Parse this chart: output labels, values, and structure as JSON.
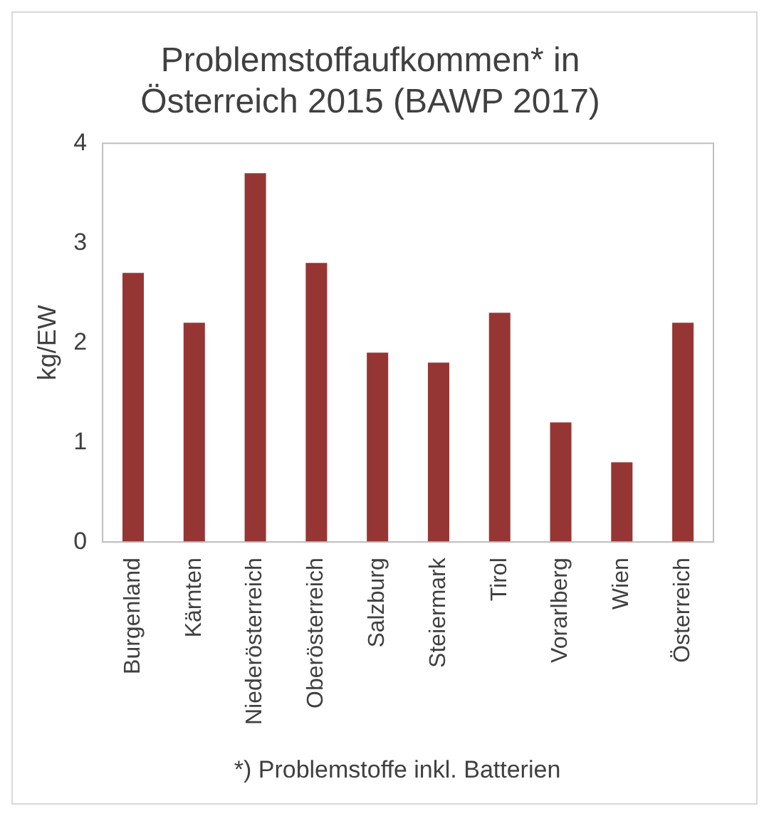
{
  "chart_data": {
    "type": "bar",
    "title": [
      "Problemstoffaufkommen* in",
      "Österreich 2015 (BAWP 2017)"
    ],
    "categories": [
      "Burgenland",
      "Kärnten",
      "Niederösterreich",
      "Oberösterreich",
      "Salzburg",
      "Steiermark",
      "Tirol",
      "Vorarlberg",
      "Wien",
      "Österreich"
    ],
    "values": [
      2.7,
      2.2,
      3.7,
      2.8,
      1.9,
      1.8,
      2.3,
      1.2,
      0.8,
      2.2
    ],
    "color": "#963634",
    "ylabel": "kg/EW",
    "ylim": [
      0,
      4
    ],
    "yticks": [
      0,
      1,
      2,
      3,
      4
    ],
    "grid": false,
    "legend": false,
    "annotations": [
      "*) Problemstoffe inkl. Batterien"
    ]
  }
}
